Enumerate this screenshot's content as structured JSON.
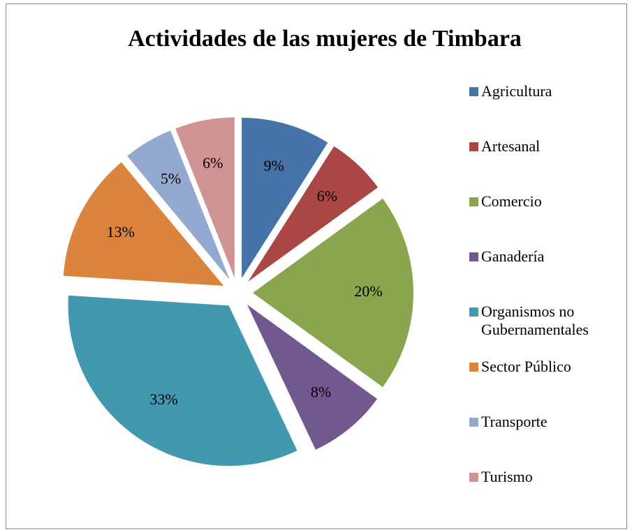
{
  "chart_data": {
    "type": "pie",
    "title": "Actividades de las mujeres de Timbara",
    "categories": [
      "Agricultura",
      "Artesanal",
      "Comercio",
      "Ganadería",
      "Organismos no Gubernamentales",
      "Sector Público",
      "Transporte",
      "Turismo"
    ],
    "values": [
      9,
      6,
      20,
      8,
      33,
      13,
      5,
      6
    ],
    "value_labels": [
      "9%",
      "6%",
      "20%",
      "8%",
      "33%",
      "13%",
      "5%",
      "6%"
    ],
    "colors": [
      "#4572a7",
      "#aa4643",
      "#89a54e",
      "#71588f",
      "#4198af",
      "#db843d",
      "#93a9cf",
      "#d19392"
    ],
    "legend": "right"
  }
}
